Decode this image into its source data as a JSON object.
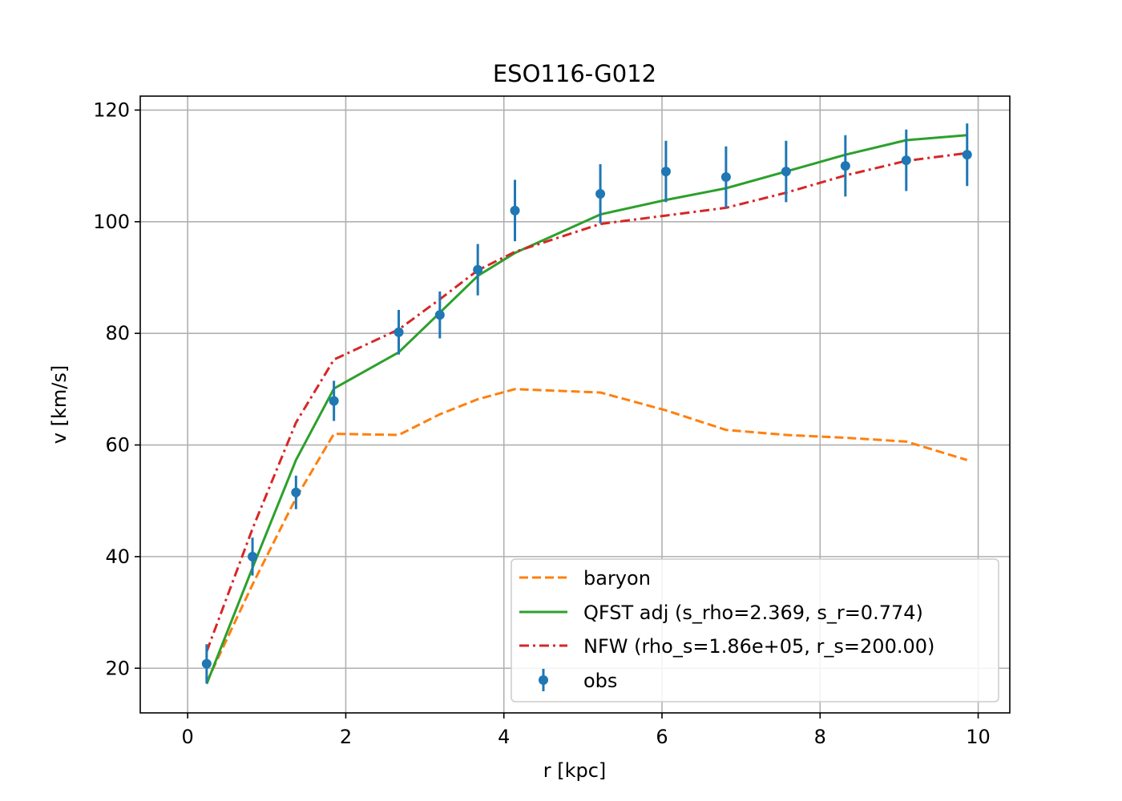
{
  "chart_data": {
    "type": "line",
    "title": "ESO116-G012",
    "xlabel": "r [kpc]",
    "ylabel": "v [km/s]",
    "xlim": [
      -0.6,
      10.4
    ],
    "ylim": [
      12,
      122.5
    ],
    "xticks": [
      0,
      2,
      4,
      6,
      8,
      10
    ],
    "yticks": [
      20,
      40,
      60,
      80,
      100,
      120
    ],
    "grid": true,
    "legend_position": "lower-right",
    "colors": {
      "baryon": "#ff7f0e",
      "qfst": "#2ca02c",
      "nfw": "#d62728",
      "obs": "#1f77b4",
      "grid": "#b0b0b0"
    },
    "x": [
      0.24,
      0.82,
      1.37,
      1.85,
      2.67,
      3.19,
      3.67,
      4.14,
      5.22,
      6.05,
      6.81,
      7.57,
      8.32,
      9.09,
      9.86
    ],
    "series": [
      {
        "name": "baryon",
        "style": "dashed",
        "values": [
          17.5,
          35.0,
          50.5,
          62.0,
          61.8,
          65.5,
          68.2,
          70.0,
          69.4,
          66.2,
          62.7,
          61.8,
          61.3,
          60.6,
          57.3
        ]
      },
      {
        "name": "QFST adj (s_rho=2.369, s_r=0.774)",
        "style": "solid",
        "values": [
          17.2,
          38.0,
          57.3,
          70.1,
          76.6,
          83.7,
          90.3,
          94.4,
          101.3,
          103.9,
          106.0,
          109.0,
          112.0,
          114.6,
          115.5
        ]
      },
      {
        "name": "NFW (rho_s=1.86e+05, r_s=200.00)",
        "style": "dashdot",
        "values": [
          23.0,
          45.0,
          64.0,
          75.3,
          80.7,
          86.1,
          91.3,
          94.6,
          99.6,
          101.1,
          102.5,
          105.2,
          108.3,
          110.9,
          112.3
        ]
      }
    ],
    "obs": {
      "name": "obs",
      "values": [
        20.8,
        40.0,
        51.5,
        67.9,
        80.2,
        83.3,
        91.4,
        102.0,
        105.0,
        109.0,
        108.0,
        109.0,
        110.0,
        111.0,
        112.0
      ],
      "errors": [
        3.5,
        3.4,
        3.0,
        3.6,
        4.0,
        4.2,
        4.6,
        5.5,
        5.3,
        5.5,
        5.5,
        5.5,
        5.5,
        5.5,
        5.6
      ]
    }
  }
}
